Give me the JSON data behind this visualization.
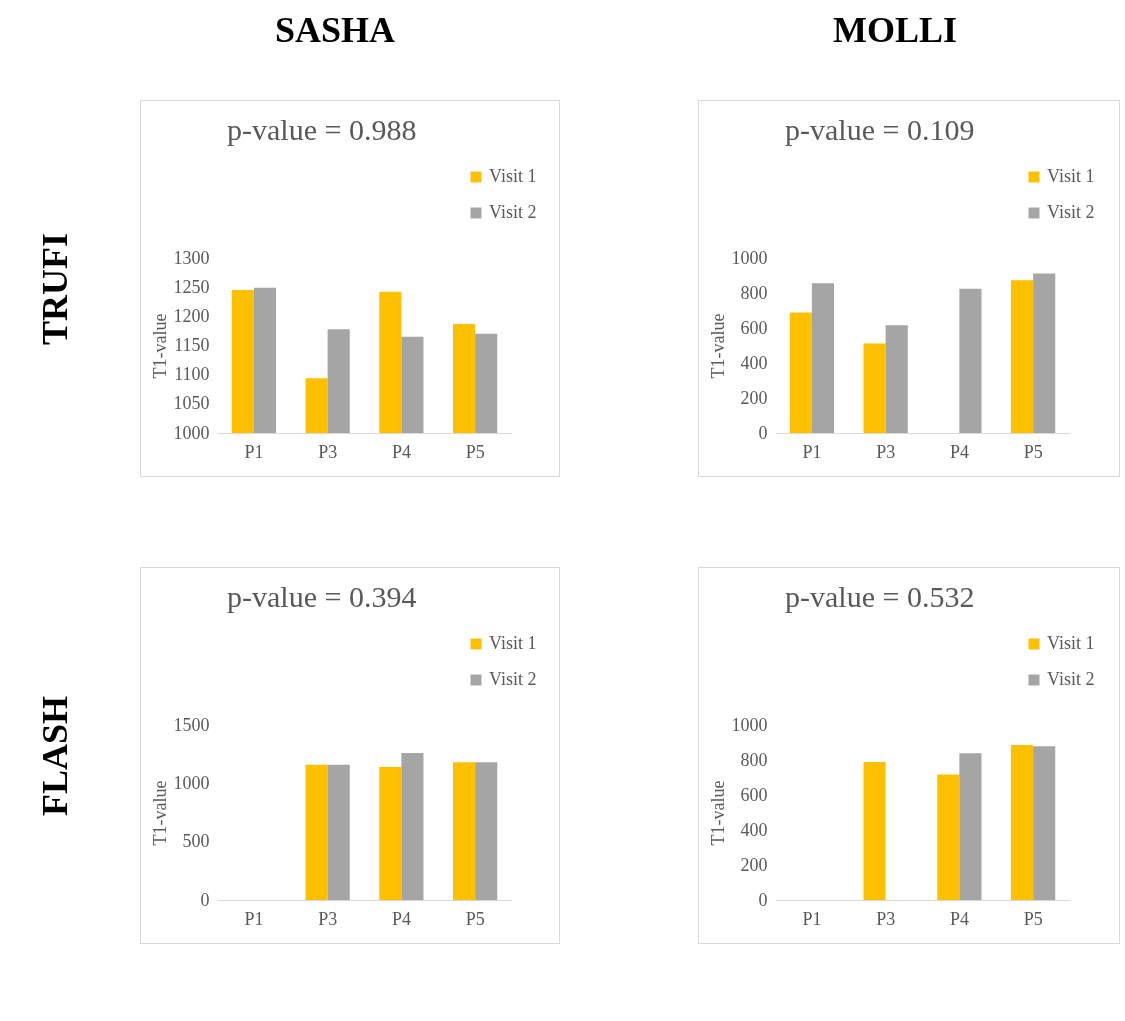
{
  "chart_data": [
    {
      "type": "bar",
      "title": "SASHA",
      "annotations": [
        "p-value = 0.988",
        "TRUFI"
      ],
      "ylabel": "T1-value",
      "categories": [
        "P1",
        "P3",
        "P4",
        "P5"
      ],
      "series": [
        {
          "name": "Visit 1",
          "color": "#ffc000",
          "values": [
            1245,
            1094,
            1242,
            1187
          ]
        },
        {
          "name": "Visit 2",
          "color": "#a5a5a5",
          "values": [
            1249,
            1178,
            1165,
            1170
          ]
        }
      ],
      "ylim": [
        1000,
        1300
      ],
      "yticks": [
        1000,
        1050,
        1100,
        1150,
        1200,
        1250,
        1300
      ],
      "grid": false,
      "legend": "top right"
    },
    {
      "type": "bar",
      "title": "MOLLI",
      "annotations": [
        "p-value = 0.109"
      ],
      "ylabel": "T1-value",
      "categories": [
        "P1",
        "P3",
        "P4",
        "P5"
      ],
      "series": [
        {
          "name": "Visit 1",
          "color": "#ffc000",
          "values": [
            689,
            512,
            null,
            873
          ]
        },
        {
          "name": "Visit 2",
          "color": "#a5a5a5",
          "values": [
            856,
            616,
            824,
            912
          ]
        }
      ],
      "ylim": [
        0,
        1000
      ],
      "yticks": [
        0,
        200,
        400,
        600,
        800,
        1000
      ],
      "grid": false,
      "legend": "top right"
    },
    {
      "type": "bar",
      "annotations": [
        "p-value = 0.394",
        "FLASH"
      ],
      "ylabel": "T1-value",
      "categories": [
        "P1",
        "P3",
        "P4",
        "P5"
      ],
      "series": [
        {
          "name": "Visit 1",
          "color": "#ffc000",
          "values": [
            null,
            1160,
            1140,
            1180
          ]
        },
        {
          "name": "Visit 2",
          "color": "#a5a5a5",
          "values": [
            null,
            1160,
            1260,
            1180
          ]
        }
      ],
      "ylim": [
        0,
        1500
      ],
      "yticks": [
        0,
        500,
        1000,
        1500
      ],
      "grid": false,
      "legend": "top right"
    },
    {
      "type": "bar",
      "annotations": [
        "p-value = 0.532"
      ],
      "ylabel": "T1-value",
      "categories": [
        "P1",
        "P3",
        "P4",
        "P5"
      ],
      "series": [
        {
          "name": "Visit 1",
          "color": "#ffc000",
          "values": [
            null,
            789,
            717,
            886
          ]
        },
        {
          "name": "Visit 2",
          "color": "#a5a5a5",
          "values": [
            null,
            null,
            838,
            879
          ]
        }
      ],
      "ylim": [
        0,
        1000
      ],
      "yticks": [
        0,
        200,
        400,
        600,
        800,
        1000
      ],
      "grid": false,
      "legend": "top right"
    }
  ]
}
